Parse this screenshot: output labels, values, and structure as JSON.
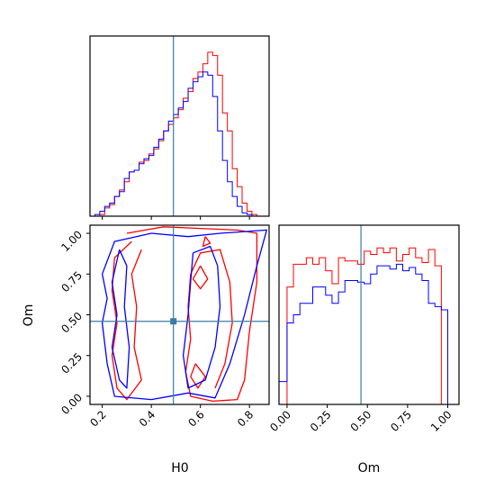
{
  "chart_data": [
    {
      "type": "histogram",
      "panel": "H0 marginal",
      "xlim": [
        0.15,
        0.88
      ],
      "truth_line": 0.49,
      "truth_color": "#3a7ca5",
      "series": [
        {
          "color": "#ff0000",
          "bin_edges": [
            0.17,
            0.19,
            0.21,
            0.23,
            0.25,
            0.27,
            0.29,
            0.31,
            0.33,
            0.35,
            0.37,
            0.39,
            0.41,
            0.43,
            0.45,
            0.47,
            0.49,
            0.51,
            0.53,
            0.55,
            0.57,
            0.59,
            0.61,
            0.63,
            0.65,
            0.67,
            0.69,
            0.71,
            0.73,
            0.75,
            0.77,
            0.79,
            0.81,
            0.83,
            0.85
          ],
          "heights": [
            0.0,
            0.01,
            0.05,
            0.07,
            0.12,
            0.16,
            0.21,
            0.27,
            0.28,
            0.33,
            0.34,
            0.38,
            0.41,
            0.46,
            0.52,
            0.56,
            0.6,
            0.65,
            0.72,
            0.76,
            0.84,
            0.88,
            0.93,
            1.0,
            0.98,
            0.86,
            0.63,
            0.52,
            0.29,
            0.18,
            0.08,
            0.03,
            0.01,
            0.0
          ]
        },
        {
          "color": "#0000ff",
          "bin_edges": [
            0.17,
            0.19,
            0.21,
            0.23,
            0.25,
            0.27,
            0.29,
            0.31,
            0.33,
            0.35,
            0.37,
            0.39,
            0.41,
            0.43,
            0.45,
            0.47,
            0.49,
            0.51,
            0.53,
            0.55,
            0.57,
            0.59,
            0.61,
            0.63,
            0.65,
            0.67,
            0.69,
            0.71,
            0.73,
            0.75,
            0.77,
            0.79,
            0.81,
            0.83,
            0.85
          ],
          "heights": [
            0.01,
            0.03,
            0.06,
            0.08,
            0.12,
            0.15,
            0.23,
            0.27,
            0.28,
            0.32,
            0.35,
            0.37,
            0.42,
            0.47,
            0.52,
            0.58,
            0.62,
            0.66,
            0.7,
            0.78,
            0.82,
            0.85,
            0.88,
            0.86,
            0.73,
            0.52,
            0.34,
            0.21,
            0.12,
            0.06,
            0.02,
            0.01,
            0.0,
            0.0
          ]
        }
      ]
    },
    {
      "type": "contour",
      "panel": "H0 vs Om 2D",
      "xlabel": "H0",
      "ylabel": "Om",
      "xlim": [
        0.15,
        0.88
      ],
      "ylim": [
        -0.05,
        1.05
      ],
      "xticks": [
        "0.2",
        "0.4",
        "0.6",
        "0.8"
      ],
      "xtick_values": [
        0.2,
        0.4,
        0.6,
        0.8
      ],
      "yticks": [
        "0.00",
        "0.25",
        "0.50",
        "0.75",
        "1.00"
      ],
      "ytick_values": [
        0.0,
        0.25,
        0.5,
        0.75,
        1.0
      ],
      "truth": [
        0.49,
        0.46
      ],
      "truth_color": "#3a7ca5",
      "series": [
        {
          "color": "#ff0000",
          "contours": [
            [
              [
                0.3,
                1.0
              ],
              [
                0.45,
                1.04
              ],
              [
                0.6,
                1.03
              ],
              [
                0.75,
                1.02
              ],
              [
                0.83,
                1.0
              ],
              [
                0.83,
                0.7
              ],
              [
                0.8,
                0.4
              ],
              [
                0.78,
                0.1
              ],
              [
                0.75,
                -0.02
              ],
              [
                0.65,
                -0.03
              ],
              [
                0.56,
                0.0
              ],
              [
                0.54,
                0.15
              ],
              [
                0.56,
                0.35
              ],
              [
                0.55,
                0.55
              ],
              [
                0.56,
                0.75
              ],
              [
                0.6,
                0.88
              ],
              [
                0.68,
                0.9
              ],
              [
                0.72,
                0.7
              ],
              [
                0.73,
                0.45
              ],
              [
                0.7,
                0.2
              ],
              [
                0.66,
                0.05
              ]
            ],
            [
              [
                0.32,
                0.95
              ],
              [
                0.25,
                0.85
              ],
              [
                0.24,
                0.65
              ],
              [
                0.26,
                0.45
              ],
              [
                0.24,
                0.25
              ],
              [
                0.26,
                0.05
              ],
              [
                0.3,
                -0.02
              ],
              [
                0.36,
                0.1
              ],
              [
                0.33,
                0.3
              ],
              [
                0.34,
                0.55
              ],
              [
                0.32,
                0.75
              ],
              [
                0.36,
                0.9
              ]
            ],
            [
              [
                0.6,
                0.8
              ],
              [
                0.63,
                0.72
              ],
              [
                0.6,
                0.66
              ],
              [
                0.57,
                0.72
              ],
              [
                0.6,
                0.8
              ]
            ],
            [
              [
                0.58,
                0.2
              ],
              [
                0.62,
                0.12
              ],
              [
                0.59,
                0.05
              ],
              [
                0.56,
                0.12
              ],
              [
                0.58,
                0.2
              ]
            ],
            [
              [
                0.62,
                0.98
              ],
              [
                0.64,
                0.94
              ],
              [
                0.61,
                0.92
              ],
              [
                0.62,
                0.98
              ]
            ]
          ]
        },
        {
          "color": "#0000ff",
          "contours": [
            [
              [
                0.2,
                0.75
              ],
              [
                0.25,
                0.95
              ],
              [
                0.4,
                1.0
              ],
              [
                0.55,
                0.98
              ],
              [
                0.68,
                1.0
              ],
              [
                0.87,
                1.02
              ],
              [
                0.83,
                0.8
              ],
              [
                0.78,
                0.5
              ],
              [
                0.72,
                0.2
              ],
              [
                0.66,
                -0.01
              ],
              [
                0.55,
                0.02
              ],
              [
                0.4,
                -0.02
              ],
              [
                0.25,
                0.0
              ],
              [
                0.22,
                0.2
              ],
              [
                0.2,
                0.45
              ],
              [
                0.22,
                0.6
              ],
              [
                0.2,
                0.75
              ]
            ],
            [
              [
                0.27,
                0.9
              ],
              [
                0.24,
                0.7
              ],
              [
                0.26,
                0.5
              ],
              [
                0.24,
                0.3
              ],
              [
                0.27,
                0.1
              ],
              [
                0.3,
                0.05
              ],
              [
                0.31,
                0.3
              ],
              [
                0.29,
                0.55
              ],
              [
                0.3,
                0.8
              ],
              [
                0.27,
                0.9
              ]
            ],
            [
              [
                0.57,
                0.88
              ],
              [
                0.64,
                0.92
              ],
              [
                0.67,
                0.8
              ],
              [
                0.68,
                0.55
              ],
              [
                0.66,
                0.3
              ],
              [
                0.62,
                0.1
              ],
              [
                0.55,
                0.05
              ],
              [
                0.53,
                0.25
              ],
              [
                0.55,
                0.5
              ],
              [
                0.56,
                0.7
              ],
              [
                0.57,
                0.88
              ]
            ]
          ]
        }
      ]
    },
    {
      "type": "histogram",
      "panel": "Om marginal",
      "xlabel": "Om",
      "xlim": [
        -0.05,
        1.07
      ],
      "xticks": [
        "0.00",
        "0.25",
        "0.50",
        "0.75",
        "1.00"
      ],
      "xtick_values": [
        0.0,
        0.25,
        0.5,
        0.75,
        1.0
      ],
      "truth_line": 0.46,
      "truth_color": "#3a7ca5",
      "series": [
        {
          "color": "#ff0000",
          "bin_edges": [
            0.0,
            0.04,
            0.08,
            0.12,
            0.16,
            0.2,
            0.24,
            0.28,
            0.32,
            0.36,
            0.4,
            0.44,
            0.48,
            0.52,
            0.56,
            0.6,
            0.64,
            0.68,
            0.72,
            0.76,
            0.8,
            0.84,
            0.88,
            0.92,
            0.96,
            1.0
          ],
          "heights": [
            0.72,
            0.86,
            0.86,
            0.9,
            0.86,
            0.9,
            0.82,
            0.74,
            0.9,
            0.88,
            0.88,
            0.86,
            0.94,
            0.92,
            0.96,
            0.93,
            0.96,
            0.88,
            0.92,
            0.96,
            0.9,
            0.87,
            0.95,
            0.85,
            0.0
          ]
        },
        {
          "color": "#0000ff",
          "bin_edges": [
            -0.05,
            0.0,
            0.04,
            0.08,
            0.12,
            0.16,
            0.2,
            0.24,
            0.28,
            0.32,
            0.36,
            0.4,
            0.44,
            0.48,
            0.52,
            0.56,
            0.6,
            0.64,
            0.68,
            0.72,
            0.76,
            0.8,
            0.84,
            0.88,
            0.92,
            0.96,
            1.0,
            1.04
          ],
          "heights": [
            0.14,
            0.5,
            0.55,
            0.62,
            0.62,
            0.72,
            0.72,
            0.67,
            0.62,
            0.69,
            0.76,
            0.76,
            0.75,
            0.74,
            0.8,
            0.85,
            0.85,
            0.83,
            0.86,
            0.82,
            0.84,
            0.8,
            0.76,
            0.62,
            0.6,
            0.58,
            0.0
          ]
        }
      ]
    }
  ]
}
